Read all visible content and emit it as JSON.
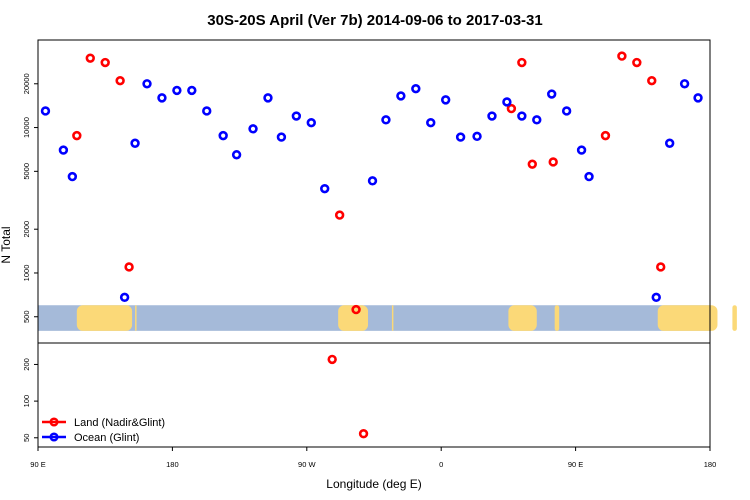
{
  "chart_data": {
    "type": "scatter",
    "title": "30S-20S April (Ver 7b)   2014-09-06 to 2017-03-31",
    "xlabel": "Longitude (deg E)",
    "ylabel": "N Total",
    "y_scale": "log",
    "xlim": [
      90,
      540
    ],
    "x_ticks": [
      {
        "value": 90,
        "label": "90 E"
      },
      {
        "value": 180,
        "label": "180"
      },
      {
        "value": 270,
        "label": "90 W"
      },
      {
        "value": 360,
        "label": "0"
      },
      {
        "value": 450,
        "label": "90 E"
      },
      {
        "value": 540,
        "label": "180"
      }
    ],
    "upper_panel": {
      "ylim": [
        330,
        40000
      ],
      "y_ticks": [
        500,
        1000,
        2000,
        5000,
        10000,
        20000
      ]
    },
    "lower_panel": {
      "ylim": [
        42,
        300
      ],
      "y_ticks": [
        50,
        100,
        200
      ]
    },
    "map_strip": {
      "ylim": [
        400,
        600
      ],
      "ocean_color": "#a5bad9",
      "land_color": "#fbd978",
      "land_lon_ranges": [
        [
          116,
          153
        ],
        [
          155,
          156
        ],
        [
          291,
          311
        ],
        [
          327,
          328
        ],
        [
          405,
          424
        ],
        [
          436,
          439
        ],
        [
          505,
          545
        ],
        [
          555,
          558
        ]
      ]
    },
    "series": [
      {
        "name": "Land (Nadir&Glint)",
        "color": "#ff0000",
        "points": [
          [
            116,
            8800
          ],
          [
            125,
            30000
          ],
          [
            135,
            28000
          ],
          [
            145,
            21000
          ],
          [
            151,
            1100
          ],
          [
            287,
            220
          ],
          [
            292,
            2500
          ],
          [
            303,
            560
          ],
          [
            308,
            54
          ],
          [
            407,
            13500
          ],
          [
            414,
            28000
          ],
          [
            421,
            5600
          ],
          [
            435,
            5800
          ],
          [
            470,
            8800
          ],
          [
            481,
            31000
          ],
          [
            491,
            28000
          ],
          [
            501,
            21000
          ],
          [
            507,
            1100
          ]
        ]
      },
      {
        "name": "Ocean (Glint)",
        "color": "#0000ff",
        "points": [
          [
            95,
            13000
          ],
          [
            107,
            7000
          ],
          [
            113,
            4600
          ],
          [
            148,
            680
          ],
          [
            155,
            7800
          ],
          [
            163,
            20000
          ],
          [
            173,
            16000
          ],
          [
            183,
            18000
          ],
          [
            193,
            18000
          ],
          [
            203,
            13000
          ],
          [
            214,
            8800
          ],
          [
            223,
            6500
          ],
          [
            234,
            9800
          ],
          [
            244,
            16000
          ],
          [
            253,
            8600
          ],
          [
            263,
            12000
          ],
          [
            273,
            10800
          ],
          [
            282,
            3800
          ],
          [
            314,
            4300
          ],
          [
            323,
            11300
          ],
          [
            333,
            16500
          ],
          [
            343,
            18500
          ],
          [
            353,
            10800
          ],
          [
            363,
            15500
          ],
          [
            373,
            8600
          ],
          [
            384,
            8700
          ],
          [
            394,
            12000
          ],
          [
            404,
            15000
          ],
          [
            414,
            12000
          ],
          [
            424,
            11300
          ],
          [
            434,
            17000
          ],
          [
            444,
            13000
          ],
          [
            454,
            7000
          ],
          [
            459,
            4600
          ],
          [
            504,
            680
          ],
          [
            513,
            7800
          ],
          [
            523,
            20000
          ],
          [
            532,
            16000
          ]
        ]
      }
    ],
    "legend": {
      "placement": "bottom-left",
      "entries": [
        "Land (Nadir&Glint)",
        "Ocean (Glint)"
      ]
    }
  }
}
